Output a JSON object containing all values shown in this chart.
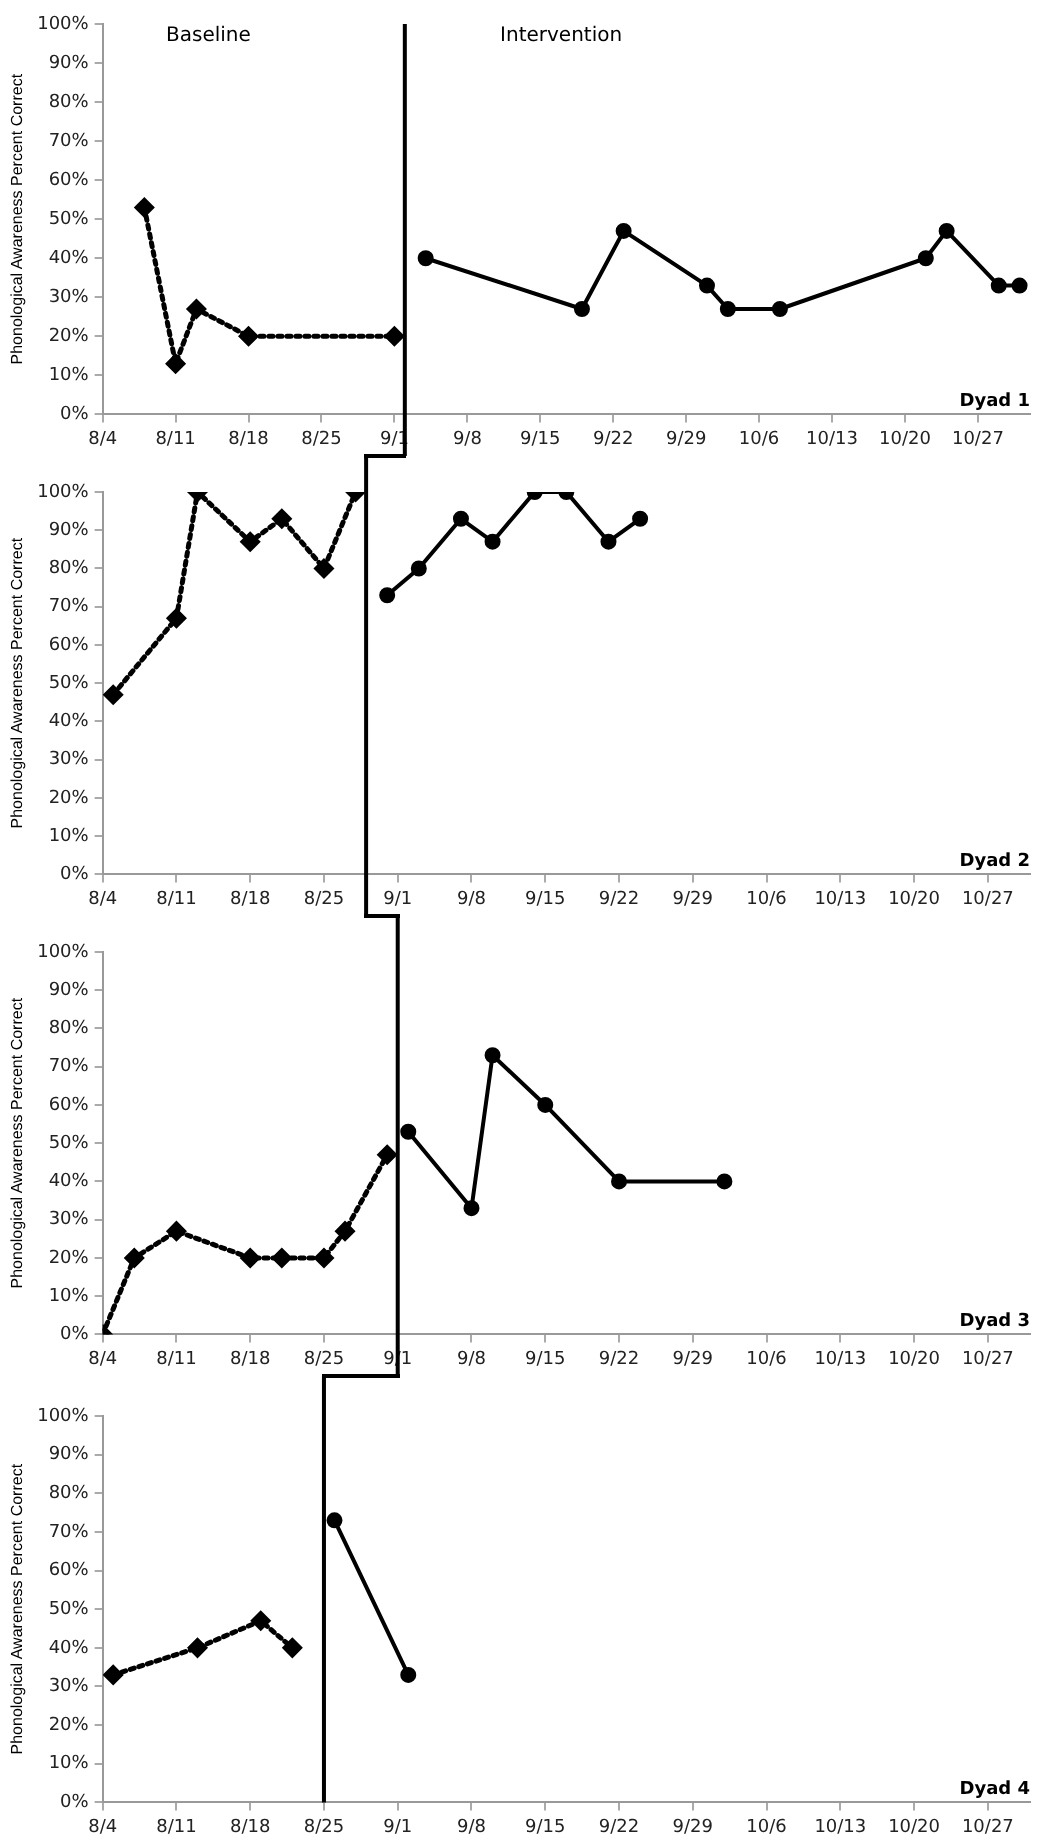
{
  "chart_data": [
    {
      "type": "line",
      "title": "Dyad 1",
      "ylabel": "Phonological Awareness Percent Correct",
      "annotations": [
        "Baseline",
        "Intervention"
      ],
      "series": [
        {
          "color": "#000000",
          "line_style": "dotted",
          "marker": "diamond",
          "x": [
            "--08-08",
            "--08-11",
            "--08-13",
            "--08-18",
            "--09-01"
          ],
          "values": [
            53,
            13,
            27,
            20,
            20
          ]
        },
        {
          "color": "#000000",
          "line_style": "solid",
          "marker": "circle",
          "x": [
            "--09-04",
            "--09-19",
            "--09-23",
            "--10-01",
            "--10-03",
            "--10-08",
            "--10-22",
            "--10-24",
            "--10-29",
            "--10-31"
          ],
          "values": [
            40,
            27,
            47,
            33,
            27,
            27,
            40,
            47,
            33,
            33
          ]
        }
      ],
      "xlim": [
        "--08-04",
        "--11-01"
      ],
      "xticks": [
        {
          "value": "--08-04",
          "label": "8/4"
        },
        {
          "value": "--08-11",
          "label": "8/11"
        },
        {
          "value": "--08-18",
          "label": "8/18"
        },
        {
          "value": "--08-25",
          "label": "8/25"
        },
        {
          "value": "--09-01",
          "label": "9/1"
        },
        {
          "value": "--09-08",
          "label": "9/8"
        },
        {
          "value": "--09-15",
          "label": "9/15"
        },
        {
          "value": "--09-22",
          "label": "9/22"
        },
        {
          "value": "--09-29",
          "label": "9/29"
        },
        {
          "value": "--10-06",
          "label": "10/6"
        },
        {
          "value": "--10-13",
          "label": "10/13"
        },
        {
          "value": "--10-20",
          "label": "10/20"
        },
        {
          "value": "--10-27",
          "label": "10/27"
        }
      ],
      "ylim": [
        0,
        100
      ],
      "yticks": [
        {
          "value": 0,
          "label": "0%"
        },
        {
          "value": 10,
          "label": "10%"
        },
        {
          "value": 20,
          "label": "20%"
        },
        {
          "value": 30,
          "label": "30%"
        },
        {
          "value": 40,
          "label": "40%"
        },
        {
          "value": 50,
          "label": "50%"
        },
        {
          "value": 60,
          "label": "60%"
        },
        {
          "value": 70,
          "label": "70%"
        },
        {
          "value": 80,
          "label": "80%"
        },
        {
          "value": 90,
          "label": "90%"
        },
        {
          "value": 100,
          "label": "100%"
        }
      ],
      "ref_lines": [
        {
          "axis": "x",
          "value": "--09-02",
          "color": "#000000"
        }
      ]
    },
    {
      "type": "line",
      "title": "Dyad 2",
      "ylabel": "Phonological Awareness Percent Correct",
      "series": [
        {
          "color": "#000000",
          "line_style": "dotted",
          "marker": "diamond",
          "x": [
            "--08-05",
            "--08-11",
            "--08-13",
            "--08-18",
            "--08-21",
            "--08-25",
            "--08-28"
          ],
          "values": [
            47,
            67,
            100,
            87,
            93,
            80,
            100
          ]
        },
        {
          "color": "#000000",
          "line_style": "solid",
          "marker": "circle",
          "x": [
            "--08-31",
            "--09-03",
            "--09-07",
            "--09-10",
            "--09-14",
            "--09-17",
            "--09-21",
            "--09-24"
          ],
          "values": [
            73,
            80,
            93,
            87,
            100,
            100,
            87,
            93
          ]
        }
      ],
      "xlim": [
        "--08-04",
        "--10-31"
      ],
      "xticks": [
        {
          "value": "--08-04",
          "label": "8/4"
        },
        {
          "value": "--08-11",
          "label": "8/11"
        },
        {
          "value": "--08-18",
          "label": "8/18"
        },
        {
          "value": "--08-25",
          "label": "8/25"
        },
        {
          "value": "--09-01",
          "label": "9/1"
        },
        {
          "value": "--09-08",
          "label": "9/8"
        },
        {
          "value": "--09-15",
          "label": "9/15"
        },
        {
          "value": "--09-22",
          "label": "9/22"
        },
        {
          "value": "--09-29",
          "label": "9/29"
        },
        {
          "value": "--10-06",
          "label": "10/6"
        },
        {
          "value": "--10-13",
          "label": "10/13"
        },
        {
          "value": "--10-20",
          "label": "10/20"
        },
        {
          "value": "--10-27",
          "label": "10/27"
        }
      ],
      "ylim": [
        0,
        100
      ],
      "yticks": [
        {
          "value": 0,
          "label": "0%"
        },
        {
          "value": 10,
          "label": "10%"
        },
        {
          "value": 20,
          "label": "20%"
        },
        {
          "value": 30,
          "label": "30%"
        },
        {
          "value": 40,
          "label": "40%"
        },
        {
          "value": 50,
          "label": "50%"
        },
        {
          "value": 60,
          "label": "60%"
        },
        {
          "value": 70,
          "label": "70%"
        },
        {
          "value": 80,
          "label": "80%"
        },
        {
          "value": 90,
          "label": "90%"
        },
        {
          "value": 100,
          "label": "100%"
        }
      ],
      "ref_lines": [
        {
          "axis": "x",
          "value": "--08-29",
          "color": "#000000"
        }
      ]
    },
    {
      "type": "line",
      "title": "Dyad 3",
      "ylabel": "Phonological Awareness Percent Correct",
      "series": [
        {
          "color": "#000000",
          "line_style": "dotted",
          "marker": "diamond",
          "x": [
            "--08-04",
            "--08-07",
            "--08-11",
            "--08-18",
            "--08-21",
            "--08-25",
            "--08-27",
            "--08-31"
          ],
          "values": [
            0,
            20,
            27,
            20,
            20,
            20,
            27,
            47
          ]
        },
        {
          "color": "#000000",
          "line_style": "solid",
          "marker": "circle",
          "x": [
            "--09-02",
            "--09-08",
            "--09-10",
            "--09-15",
            "--09-22",
            "--10-02"
          ],
          "values": [
            53,
            33,
            73,
            60,
            40,
            40
          ]
        }
      ],
      "xlim": [
        "--08-04",
        "--10-31"
      ],
      "xticks": [
        {
          "value": "--08-04",
          "label": "8/4"
        },
        {
          "value": "--08-11",
          "label": "8/11"
        },
        {
          "value": "--08-18",
          "label": "8/18"
        },
        {
          "value": "--08-25",
          "label": "8/25"
        },
        {
          "value": "--09-01",
          "label": "9/1"
        },
        {
          "value": "--09-08",
          "label": "9/8"
        },
        {
          "value": "--09-15",
          "label": "9/15"
        },
        {
          "value": "--09-22",
          "label": "9/22"
        },
        {
          "value": "--09-29",
          "label": "9/29"
        },
        {
          "value": "--10-06",
          "label": "10/6"
        },
        {
          "value": "--10-13",
          "label": "10/13"
        },
        {
          "value": "--10-20",
          "label": "10/20"
        },
        {
          "value": "--10-27",
          "label": "10/27"
        }
      ],
      "ylim": [
        0,
        100
      ],
      "yticks": [
        {
          "value": 0,
          "label": "0%"
        },
        {
          "value": 10,
          "label": "10%"
        },
        {
          "value": 20,
          "label": "20%"
        },
        {
          "value": 30,
          "label": "30%"
        },
        {
          "value": 40,
          "label": "40%"
        },
        {
          "value": 50,
          "label": "50%"
        },
        {
          "value": 60,
          "label": "60%"
        },
        {
          "value": 70,
          "label": "70%"
        },
        {
          "value": 80,
          "label": "80%"
        },
        {
          "value": 90,
          "label": "90%"
        },
        {
          "value": 100,
          "label": "100%"
        }
      ],
      "ref_lines": [
        {
          "axis": "x",
          "value": "--09-01",
          "color": "#000000"
        }
      ]
    },
    {
      "type": "line",
      "title": "Dyad 4",
      "ylabel": "Phonological Awareness Percent Correct",
      "series": [
        {
          "color": "#000000",
          "line_style": "dotted",
          "marker": "diamond",
          "x": [
            "--08-05",
            "--08-13",
            "--08-19",
            "--08-22"
          ],
          "values": [
            33,
            40,
            47,
            40
          ]
        },
        {
          "color": "#000000",
          "line_style": "solid",
          "marker": "circle",
          "x": [
            "--08-26",
            "--09-02"
          ],
          "values": [
            73,
            33
          ]
        }
      ],
      "xlim": [
        "--08-04",
        "--10-31"
      ],
      "xticks": [
        {
          "value": "--08-04",
          "label": "8/4"
        },
        {
          "value": "--08-11",
          "label": "8/11"
        },
        {
          "value": "--08-18",
          "label": "8/18"
        },
        {
          "value": "--08-25",
          "label": "8/25"
        },
        {
          "value": "--09-01",
          "label": "9/1"
        },
        {
          "value": "--09-08",
          "label": "9/8"
        },
        {
          "value": "--09-15",
          "label": "9/15"
        },
        {
          "value": "--09-22",
          "label": "9/22"
        },
        {
          "value": "--09-29",
          "label": "9/29"
        },
        {
          "value": "--10-06",
          "label": "10/6"
        },
        {
          "value": "--10-13",
          "label": "10/13"
        },
        {
          "value": "--10-20",
          "label": "10/20"
        },
        {
          "value": "--10-27",
          "label": "10/27"
        }
      ],
      "ylim": [
        0,
        100
      ],
      "yticks": [
        {
          "value": 0,
          "label": "0%"
        },
        {
          "value": 10,
          "label": "10%"
        },
        {
          "value": 20,
          "label": "20%"
        },
        {
          "value": 30,
          "label": "30%"
        },
        {
          "value": 40,
          "label": "40%"
        },
        {
          "value": 50,
          "label": "50%"
        },
        {
          "value": 60,
          "label": "60%"
        },
        {
          "value": 70,
          "label": "70%"
        },
        {
          "value": 80,
          "label": "80%"
        },
        {
          "value": 90,
          "label": "90%"
        },
        {
          "value": 100,
          "label": "100%"
        }
      ],
      "ref_lines": [
        {
          "axis": "x",
          "value": "--08-25",
          "color": "#000000"
        }
      ]
    }
  ]
}
